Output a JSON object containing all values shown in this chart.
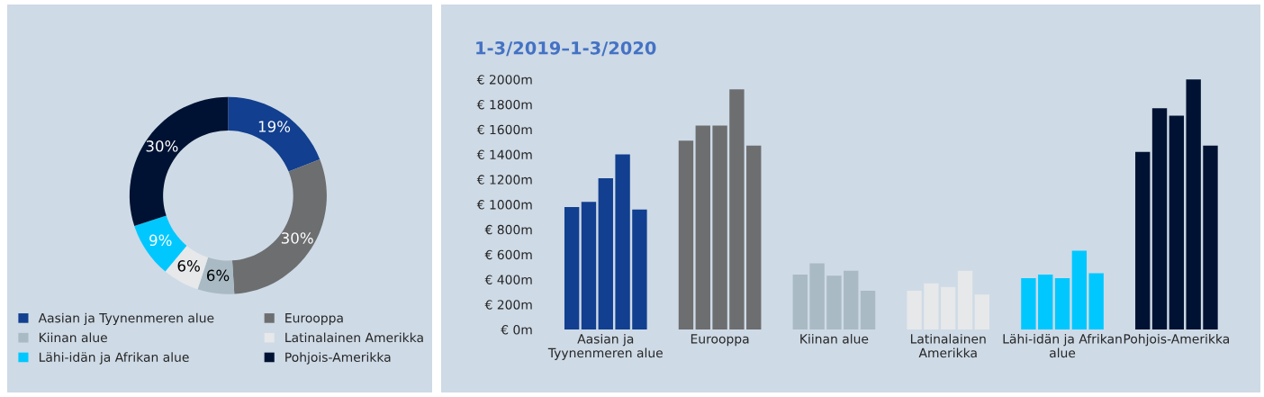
{
  "chart_data": [
    {
      "type": "donut",
      "categories": [
        "Aasian ja Tyynenmeren alue",
        "Eurooppa",
        "Kiinan alue",
        "Latinalainen Amerikka",
        "Lähi-idän ja Afrikan alue",
        "Pohjois-Amerikka"
      ],
      "values": [
        19,
        30,
        6,
        6,
        9,
        30
      ],
      "colors": [
        "#123f8f",
        "#6d6e70",
        "#a9bac4",
        "#e6e8ea",
        "#00c8ff",
        "#001233"
      ],
      "value_labels": [
        "19%",
        "30%",
        "6%",
        "6%",
        "9%",
        "30%"
      ],
      "legend": "bottom"
    },
    {
      "type": "bar",
      "title": "1-3/2019–1-3/2020",
      "categories": [
        "Aasian ja\nTyynenmeren alue",
        "Eurooppa",
        "Kiinan alue",
        "Latinalainen\nAmerikka",
        "Lähi-idän ja Afrikan\nalue",
        "Pohjois-Amerikka"
      ],
      "series": [
        {
          "colors": [
            "#123f8f",
            "#6d6e70",
            "#a9bac4",
            "#e6e8ea",
            "#00c8ff",
            "#001233"
          ],
          "values": [
            980,
            1510,
            440,
            310,
            410,
            1420
          ]
        },
        {
          "colors": [
            "#123f8f",
            "#6d6e70",
            "#a9bac4",
            "#e6e8ea",
            "#00c8ff",
            "#001233"
          ],
          "values": [
            1020,
            1630,
            530,
            370,
            440,
            1770
          ]
        },
        {
          "colors": [
            "#123f8f",
            "#6d6e70",
            "#a9bac4",
            "#e6e8ea",
            "#00c8ff",
            "#001233"
          ],
          "values": [
            1210,
            1630,
            430,
            340,
            410,
            1710
          ]
        },
        {
          "colors": [
            "#123f8f",
            "#6d6e70",
            "#a9bac4",
            "#e6e8ea",
            "#00c8ff",
            "#001233"
          ],
          "values": [
            1400,
            1920,
            470,
            470,
            630,
            2000
          ]
        },
        {
          "colors": [
            "#123f8f",
            "#6d6e70",
            "#a9bac4",
            "#e6e8ea",
            "#00c8ff",
            "#001233"
          ],
          "values": [
            960,
            1470,
            310,
            280,
            450,
            1470
          ]
        }
      ],
      "ylim": [
        0,
        2000
      ],
      "yticks": [
        {
          "value": 0,
          "label": "€ 0m"
        },
        {
          "value": 200,
          "label": "€ 200m"
        },
        {
          "value": 400,
          "label": "€ 400m"
        },
        {
          "value": 600,
          "label": "€ 600m"
        },
        {
          "value": 800,
          "label": "€ 800m"
        },
        {
          "value": 1000,
          "label": "€ 1000m"
        },
        {
          "value": 1200,
          "label": "€ 1200m"
        },
        {
          "value": 1400,
          "label": "€ 1400m"
        },
        {
          "value": 1600,
          "label": "€ 1600m"
        },
        {
          "value": 1800,
          "label": "€ 1800m"
        },
        {
          "value": 2000,
          "label": "€ 2000m"
        }
      ],
      "grid": false,
      "legend": false
    }
  ]
}
